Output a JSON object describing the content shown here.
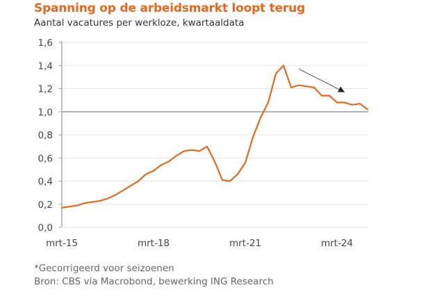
{
  "chart_data": {
    "type": "line",
    "title": "Spanning op de arbeidsmarkt loopt terug",
    "subtitle": "Aantal vacatures per werkloze, kwartaaldata",
    "xlabel": "",
    "ylabel": "",
    "ylim": [
      0.0,
      1.6
    ],
    "yticks": [
      0.0,
      0.2,
      0.4,
      0.6,
      0.8,
      1.0,
      1.2,
      1.4,
      1.6
    ],
    "ytick_labels": [
      "0,0",
      "0,2",
      "0,4",
      "0,6",
      "0,8",
      "1,0",
      "1,2",
      "1,4",
      "1,6"
    ],
    "xtick_labels": [
      {
        "label": "mrt-15",
        "index": 0
      },
      {
        "label": "mrt-18",
        "index": 12
      },
      {
        "label": "mrt-21",
        "index": 24
      },
      {
        "label": "mrt-24",
        "index": 36
      }
    ],
    "reference_line": 1.0,
    "grid": true,
    "series": [
      {
        "name": "Vacatures per werkloze",
        "color": "#E06A1E",
        "x": [
          "2015Q1",
          "2015Q2",
          "2015Q3",
          "2015Q4",
          "2016Q1",
          "2016Q2",
          "2016Q3",
          "2016Q4",
          "2017Q1",
          "2017Q2",
          "2017Q3",
          "2017Q4",
          "2018Q1",
          "2018Q2",
          "2018Q3",
          "2018Q4",
          "2019Q1",
          "2019Q2",
          "2019Q3",
          "2019Q4",
          "2020Q1",
          "2020Q2",
          "2020Q3",
          "2020Q4",
          "2021Q1",
          "2021Q2",
          "2021Q3",
          "2021Q4",
          "2022Q1",
          "2022Q2",
          "2022Q3",
          "2022Q4",
          "2023Q1",
          "2023Q2",
          "2023Q3",
          "2023Q4",
          "2024Q1",
          "2024Q2",
          "2024Q3",
          "2024Q4",
          "2025Q1"
        ],
        "values": [
          0.17,
          0.18,
          0.19,
          0.21,
          0.22,
          0.23,
          0.25,
          0.28,
          0.32,
          0.36,
          0.4,
          0.46,
          0.49,
          0.54,
          0.57,
          0.62,
          0.66,
          0.67,
          0.66,
          0.7,
          0.57,
          0.41,
          0.4,
          0.46,
          0.56,
          0.78,
          0.95,
          1.08,
          1.33,
          1.4,
          1.21,
          1.23,
          1.22,
          1.21,
          1.14,
          1.14,
          1.08,
          1.08,
          1.06,
          1.07,
          1.02
        ]
      }
    ],
    "annotations": [
      {
        "type": "arrow",
        "description": "downward trend arrow",
        "from": {
          "index": 31,
          "value": 1.37
        },
        "to": {
          "index": 37,
          "value": 1.17
        },
        "color": "#555555"
      }
    ]
  },
  "footnotes": {
    "note": "*Gecorrigeerd voor seizoenen",
    "source": "Bron: CBS via Macrobond, bewerking ING Research"
  }
}
